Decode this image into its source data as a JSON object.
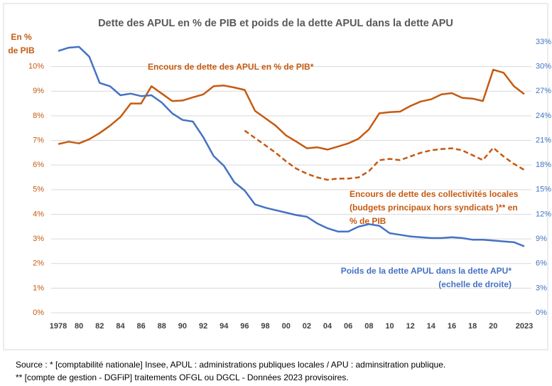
{
  "chart_data": {
    "type": "line",
    "title": "Dette des APUL en % de PIB et poids de la dette APUL dans la dette APU",
    "y_label": [
      "En %",
      "de PIB"
    ],
    "x": [
      1978,
      1979,
      1980,
      1981,
      1982,
      1983,
      1984,
      1985,
      1986,
      1987,
      1988,
      1989,
      1990,
      1991,
      1992,
      1993,
      1994,
      1995,
      1996,
      1997,
      1998,
      1999,
      2000,
      2001,
      2002,
      2003,
      2004,
      2005,
      2006,
      2007,
      2008,
      2009,
      2010,
      2011,
      2012,
      2013,
      2014,
      2015,
      2016,
      2017,
      2018,
      2019,
      2020,
      2021,
      2022,
      2023
    ],
    "xlim": [
      1978,
      2023
    ],
    "xticks": [
      {
        "value": 1978,
        "label": "1978"
      },
      {
        "value": 1980,
        "label": "80"
      },
      {
        "value": 1982,
        "label": "82"
      },
      {
        "value": 1984,
        "label": "84"
      },
      {
        "value": 1986,
        "label": "86"
      },
      {
        "value": 1988,
        "label": "88"
      },
      {
        "value": 1990,
        "label": "90"
      },
      {
        "value": 1992,
        "label": "92"
      },
      {
        "value": 1994,
        "label": "94"
      },
      {
        "value": 1996,
        "label": "96"
      },
      {
        "value": 1998,
        "label": "98"
      },
      {
        "value": 2000,
        "label": "00"
      },
      {
        "value": 2002,
        "label": "02"
      },
      {
        "value": 2004,
        "label": "04"
      },
      {
        "value": 2006,
        "label": "06"
      },
      {
        "value": 2008,
        "label": "08"
      },
      {
        "value": 2010,
        "label": "10"
      },
      {
        "value": 2012,
        "label": "12"
      },
      {
        "value": 2014,
        "label": "14"
      },
      {
        "value": 2016,
        "label": "16"
      },
      {
        "value": 2018,
        "label": "18"
      },
      {
        "value": 2020,
        "label": "20"
      },
      {
        "value": 2023,
        "label": "2023"
      }
    ],
    "ylim": [
      0,
      11
    ],
    "yticks": [
      {
        "value": 0,
        "label": "0%"
      },
      {
        "value": 1,
        "label": "1%"
      },
      {
        "value": 2,
        "label": "2%"
      },
      {
        "value": 3,
        "label": "3%"
      },
      {
        "value": 4,
        "label": "4%"
      },
      {
        "value": 5,
        "label": "5%"
      },
      {
        "value": 6,
        "label": "6%"
      },
      {
        "value": 7,
        "label": "7%"
      },
      {
        "value": 8,
        "label": "8%"
      },
      {
        "value": 9,
        "label": "9%"
      },
      {
        "value": 10,
        "label": "10%"
      }
    ],
    "y2lim": [
      0,
      33
    ],
    "y2ticks": [
      {
        "value": 0,
        "label": "0%"
      },
      {
        "value": 3,
        "label": "3%"
      },
      {
        "value": 6,
        "label": "6%"
      },
      {
        "value": 9,
        "label": "9%"
      },
      {
        "value": 12,
        "label": "12%"
      },
      {
        "value": 15,
        "label": "15%"
      },
      {
        "value": 18,
        "label": "18%"
      },
      {
        "value": 21,
        "label": "21%"
      },
      {
        "value": 24,
        "label": "24%"
      },
      {
        "value": 27,
        "label": "27%"
      },
      {
        "value": 30,
        "label": "30%"
      },
      {
        "value": 33,
        "label": "33%"
      }
    ],
    "grid": true,
    "series": [
      {
        "name": [
          "Encours de dette des APUL en % de PIB*"
        ],
        "color": "#c55a11",
        "dashed": false,
        "values": [
          6.85,
          6.95,
          6.88,
          7.05,
          7.3,
          7.6,
          7.95,
          8.5,
          8.5,
          9.2,
          8.9,
          8.6,
          8.62,
          8.75,
          8.87,
          9.2,
          9.23,
          9.15,
          9.05,
          8.2,
          7.9,
          7.6,
          7.2,
          6.95,
          6.68,
          6.72,
          6.63,
          6.75,
          6.88,
          7.07,
          7.45,
          8.1,
          8.15,
          8.17,
          8.4,
          8.58,
          8.67,
          8.87,
          8.92,
          8.73,
          8.7,
          8.6,
          9.87,
          9.75,
          9.2,
          8.88
        ]
      },
      {
        "name": [
          "Encours de dette des collectivités locales",
          "(budgets principaux hors syndicats )** en",
          "% de PIB"
        ],
        "color": "#c55a11",
        "dashed": true,
        "values": [
          null,
          null,
          null,
          null,
          null,
          null,
          null,
          null,
          null,
          null,
          null,
          null,
          null,
          null,
          null,
          null,
          null,
          null,
          7.4,
          7.1,
          6.8,
          6.5,
          6.15,
          5.85,
          5.65,
          5.5,
          5.4,
          5.45,
          5.45,
          5.5,
          5.75,
          6.2,
          6.25,
          6.2,
          6.35,
          6.5,
          6.6,
          6.65,
          6.68,
          6.6,
          6.4,
          6.2,
          6.7,
          6.35,
          6.05,
          5.8
        ]
      },
      {
        "name": [
          "Poids de la dette APUL dans la dette APU*",
          "(echelle de droite)"
        ],
        "color": "#4472c4",
        "dashed": false,
        "axis": "y2",
        "values": [
          31.9,
          32.3,
          32.4,
          31.2,
          28.0,
          27.6,
          26.5,
          26.7,
          26.4,
          26.5,
          25.6,
          24.3,
          23.5,
          23.3,
          21.4,
          19.1,
          17.9,
          15.9,
          14.9,
          13.2,
          12.8,
          12.5,
          12.2,
          11.9,
          11.7,
          10.9,
          10.3,
          9.9,
          9.9,
          10.5,
          10.8,
          10.6,
          9.7,
          9.5,
          9.3,
          9.2,
          9.1,
          9.1,
          9.2,
          9.1,
          8.9,
          8.9,
          8.8,
          8.7,
          8.6,
          8.1
        ]
      }
    ],
    "source": [
      "Source  : * [comptabilité nationale] Insee, APUL : administrations publiques locales / APU : adminsitration publique.",
      "** [compte de gestion - DGFiP] traitements OFGL ou DGCL - Données 2023 provisoires."
    ]
  }
}
